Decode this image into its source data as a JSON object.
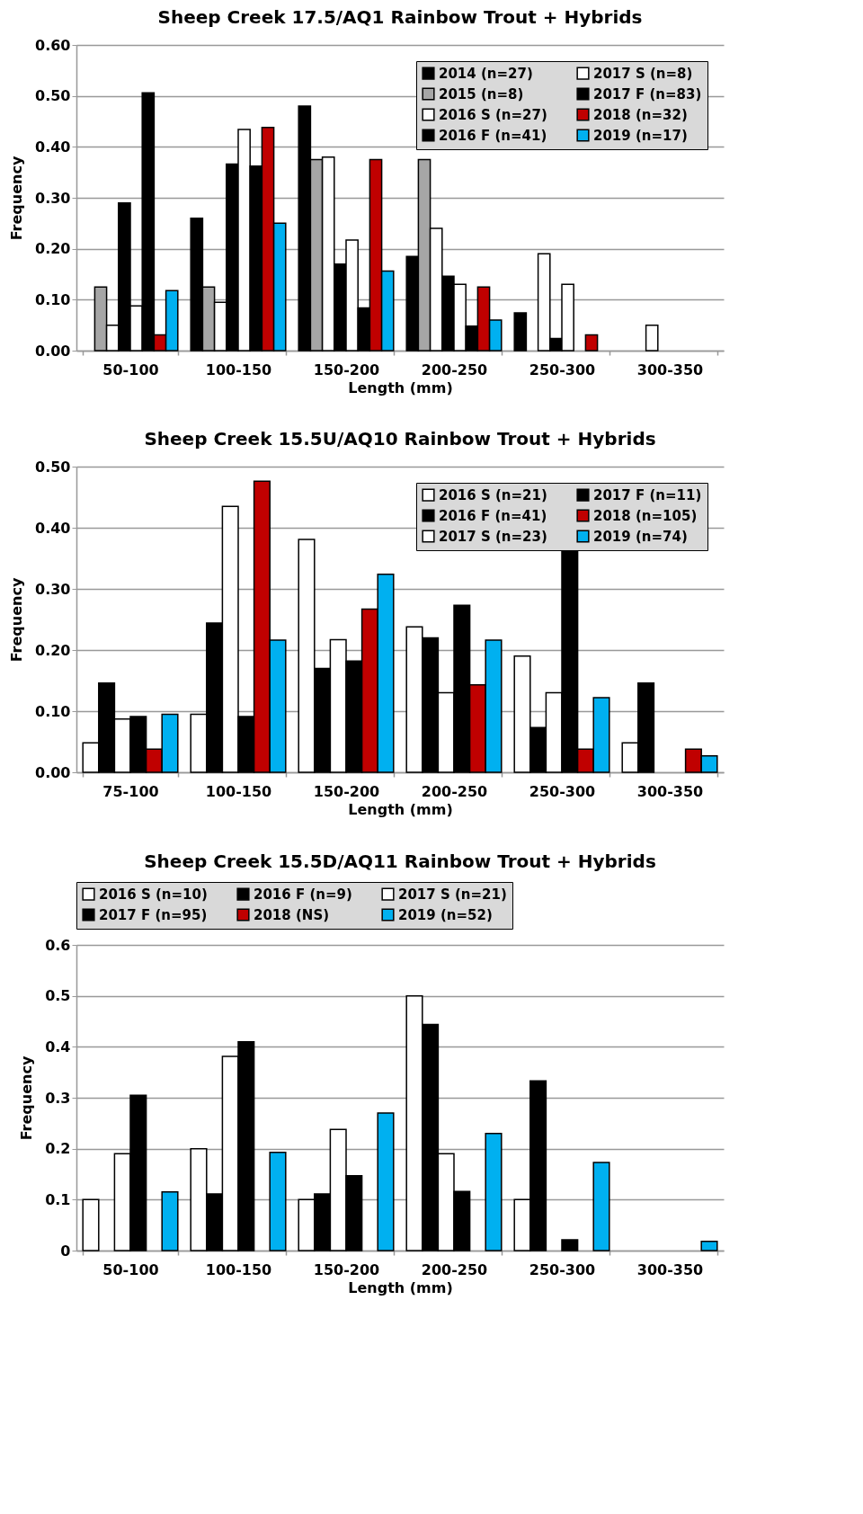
{
  "chart_data": [
    {
      "type": "bar",
      "title": "Sheep Creek 17.5/AQ1  Rainbow Trout + Hybrids",
      "xlabel": "Length (mm)",
      "ylabel": "Frequency",
      "categories": [
        "50-100",
        "100-150",
        "150-200",
        "200-250",
        "250-300",
        "300-350"
      ],
      "ylim": [
        0,
        0.6
      ],
      "yticks": [
        {
          "value": 0,
          "label": "0.00"
        },
        {
          "value": 0.1,
          "label": "0.10"
        },
        {
          "value": 0.2,
          "label": "0.20"
        },
        {
          "value": 0.3,
          "label": "0.30"
        },
        {
          "value": 0.4,
          "label": "0.40"
        },
        {
          "value": 0.5,
          "label": "0.50"
        },
        {
          "value": 0.6,
          "label": "0.60"
        }
      ],
      "grid": "y",
      "legend": "top right",
      "series": [
        {
          "name": "2014 (n=27)",
          "color": "#000000",
          "values": [
            null,
            0.26,
            0.48,
            0.185,
            0.074,
            null
          ]
        },
        {
          "name": "2015 (n=8)",
          "color": "#a6a6a6",
          "values": [
            0.125,
            0.125,
            0.375,
            0.375,
            null,
            null
          ]
        },
        {
          "name": "2016 S (n=27)",
          "color": "#ffffff",
          "values": [
            0.05,
            0.095,
            0.38,
            0.24,
            0.19,
            0.05
          ]
        },
        {
          "name": "2016 F (n=41)",
          "color": "#000000",
          "values": [
            0.29,
            0.366,
            0.17,
            0.146,
            0.024,
            null
          ]
        },
        {
          "name": "2017 S (n=8)",
          "color": "#ffffff",
          "values": [
            0.088,
            0.434,
            0.217,
            0.13,
            0.13,
            null
          ]
        },
        {
          "name": "2017 F (n=83)",
          "color": "#000000",
          "values": [
            0.506,
            0.362,
            0.084,
            0.048,
            null,
            null
          ]
        },
        {
          "name": "2018 (n=32)",
          "color": "#c00000",
          "values": [
            0.031,
            0.438,
            0.375,
            0.125,
            0.031,
            null
          ]
        },
        {
          "name": "2019 (n=17)",
          "color": "#00b0f0",
          "values": [
            0.118,
            0.25,
            0.156,
            0.06,
            null,
            null
          ]
        }
      ]
    },
    {
      "type": "bar",
      "title": "Sheep Creek 15.5U/AQ10  Rainbow Trout + Hybrids",
      "xlabel": "Length (mm)",
      "ylabel": "Frequency",
      "categories": [
        "75-100",
        "100-150",
        "150-200",
        "200-250",
        "250-300",
        "300-350"
      ],
      "ylim": [
        0,
        0.5
      ],
      "yticks": [
        {
          "value": 0,
          "label": "0.00"
        },
        {
          "value": 0.1,
          "label": "0.10"
        },
        {
          "value": 0.2,
          "label": "0.20"
        },
        {
          "value": 0.3,
          "label": "0.30"
        },
        {
          "value": 0.4,
          "label": "0.40"
        },
        {
          "value": 0.5,
          "label": "0.50"
        }
      ],
      "grid": "y",
      "legend": "top right",
      "series": [
        {
          "name": "2016 S (n=21)",
          "color": "#ffffff",
          "values": [
            0.048,
            0.095,
            0.381,
            0.238,
            0.19,
            0.048
          ]
        },
        {
          "name": "2016 F (n=41)",
          "color": "#000000",
          "values": [
            0.146,
            0.244,
            0.17,
            0.22,
            0.073,
            0.146
          ]
        },
        {
          "name": "2017 S (n=23)",
          "color": "#ffffff",
          "values": [
            0.087,
            0.435,
            0.217,
            0.13,
            0.13,
            null
          ]
        },
        {
          "name": "2017 F (n=11)",
          "color": "#000000",
          "values": [
            0.091,
            0.091,
            0.182,
            0.273,
            0.364,
            null
          ]
        },
        {
          "name": "2018 (n=105)",
          "color": "#c00000",
          "values": [
            0.038,
            0.476,
            0.267,
            0.143,
            0.038,
            0.038
          ]
        },
        {
          "name": "2019 (n=74)",
          "color": "#00b0f0",
          "values": [
            0.095,
            0.216,
            0.324,
            0.216,
            0.122,
            0.027
          ]
        }
      ]
    },
    {
      "type": "bar",
      "title": "Sheep Creek 15.5D/AQ11  Rainbow Trout + Hybrids",
      "xlabel": "Length (mm)",
      "ylabel": "Frequency",
      "categories": [
        "50-100",
        "100-150",
        "150-200",
        "200-250",
        "250-300",
        "300-350"
      ],
      "ylim": [
        0,
        0.6
      ],
      "yticks": [
        0,
        0.1,
        0.2,
        0.3,
        0.4,
        0.5,
        0.6
      ],
      "grid": "y",
      "legend": "top",
      "series": [
        {
          "name": "2016 S (n=10)",
          "color": "#ffffff",
          "values": [
            0.1,
            0.2,
            0.1,
            0.5,
            0.1,
            null
          ]
        },
        {
          "name": "2016 F (n=9)",
          "color": "#000000",
          "values": [
            null,
            0.111,
            0.111,
            0.444,
            0.333,
            null
          ]
        },
        {
          "name": "2017 S (n=21)",
          "color": "#ffffff",
          "values": [
            0.19,
            0.381,
            0.238,
            0.19,
            null,
            null
          ]
        },
        {
          "name": "2017 F (n=95)",
          "color": "#000000",
          "values": [
            0.305,
            0.41,
            0.147,
            0.116,
            0.021,
            null
          ]
        },
        {
          "name": "2018 (NS)",
          "color": "#c00000",
          "values": [
            null,
            null,
            null,
            null,
            null,
            null
          ]
        },
        {
          "name": "2019 (n=52)",
          "color": "#00b0f0",
          "values": [
            0.115,
            0.193,
            0.27,
            0.23,
            0.173,
            0.018
          ]
        }
      ]
    }
  ]
}
